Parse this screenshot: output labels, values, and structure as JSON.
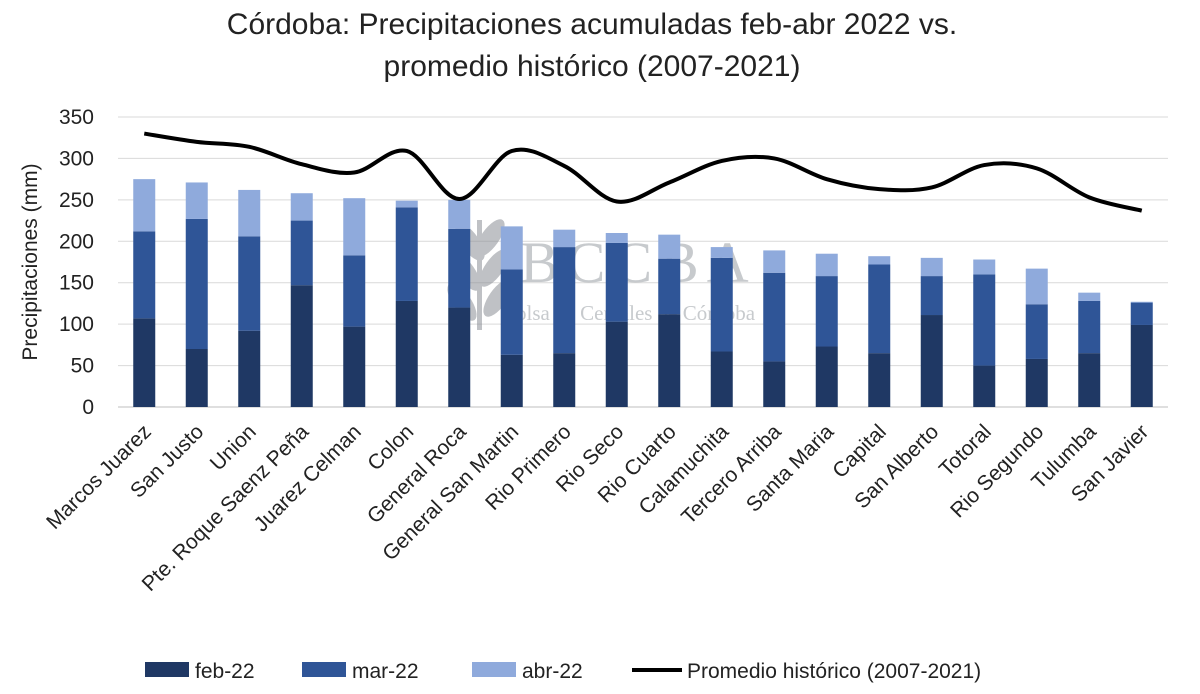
{
  "chart_data": {
    "type": "bar",
    "stacked": true,
    "title_line1": "Córdoba: Precipitaciones acumuladas feb-abr 2022 vs.",
    "title_line2": "promedio histórico (2007-2021)",
    "ylabel": "Precipitaciones (mm)",
    "xlabel": "",
    "ylim": [
      0,
      350
    ],
    "yticks": [
      0,
      50,
      100,
      150,
      200,
      250,
      300,
      350
    ],
    "grid": true,
    "legend_position": "bottom",
    "categories": [
      "Marcos Juarez",
      "San Justo",
      "Union",
      "Pte. Roque Saenz Peña",
      "Juarez Celman",
      "Colon",
      "General Roca",
      "General San Martin",
      "Rio Primero",
      "Rio Seco",
      "Rio Cuarto",
      "Calamuchita",
      "Tercero Arriba",
      "Santa Maria",
      "Capital",
      "San Alberto",
      "Totoral",
      "Rio Segundo",
      "Tulumba",
      "San Javier"
    ],
    "series": [
      {
        "name": "feb-22",
        "kind": "bar",
        "color": "#1f3864",
        "values": [
          107,
          70,
          92,
          147,
          97,
          128,
          120,
          63,
          65,
          103,
          112,
          67,
          55,
          73,
          65,
          111,
          50,
          58,
          65,
          99
        ]
      },
      {
        "name": "mar-22",
        "kind": "bar",
        "color": "#2f5597",
        "values": [
          105,
          157,
          114,
          78,
          86,
          113,
          95,
          103,
          128,
          95,
          67,
          113,
          107,
          85,
          107,
          47,
          110,
          66,
          63,
          27
        ]
      },
      {
        "name": "abr-22",
        "kind": "bar",
        "color": "#8faadc",
        "values": [
          63,
          44,
          56,
          33,
          69,
          8,
          35,
          52,
          21,
          12,
          29,
          13,
          27,
          27,
          10,
          22,
          18,
          43,
          10,
          1
        ]
      },
      {
        "name": "Promedio histórico (2007-2021)",
        "kind": "line",
        "color": "#000000",
        "values": [
          330,
          320,
          314,
          293,
          283,
          309,
          251,
          309,
          291,
          248,
          271,
          297,
          300,
          275,
          263,
          265,
          292,
          288,
          253,
          237
        ]
      }
    ]
  },
  "watermark": {
    "text": "BCCBA",
    "subtext": "Bolsa de Cereales de Córdoba"
  }
}
